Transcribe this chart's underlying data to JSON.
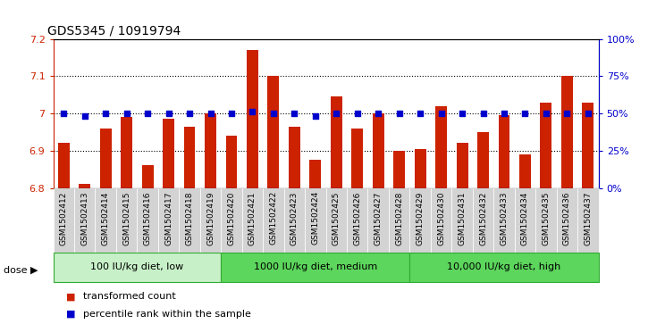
{
  "title": "GDS5345 / 10919794",
  "categories": [
    "GSM1502412",
    "GSM1502413",
    "GSM1502414",
    "GSM1502415",
    "GSM1502416",
    "GSM1502417",
    "GSM1502418",
    "GSM1502419",
    "GSM1502420",
    "GSM1502421",
    "GSM1502422",
    "GSM1502423",
    "GSM1502424",
    "GSM1502425",
    "GSM1502426",
    "GSM1502427",
    "GSM1502428",
    "GSM1502429",
    "GSM1502430",
    "GSM1502431",
    "GSM1502432",
    "GSM1502433",
    "GSM1502434",
    "GSM1502435",
    "GSM1502436",
    "GSM1502437"
  ],
  "bar_values": [
    6.92,
    6.81,
    6.96,
    6.99,
    6.86,
    6.985,
    6.965,
    7.0,
    6.94,
    7.17,
    7.1,
    6.965,
    6.875,
    7.045,
    6.96,
    7.0,
    6.9,
    6.905,
    7.02,
    6.92,
    6.95,
    6.995,
    6.89,
    7.03,
    7.1,
    7.03
  ],
  "percentile_values": [
    50,
    48,
    50,
    50,
    50,
    50,
    50,
    50,
    50,
    51,
    50,
    50,
    48,
    50,
    50,
    50,
    50,
    50,
    50,
    50,
    50,
    50,
    50,
    50,
    50,
    50
  ],
  "bar_color": "#cc2200",
  "dot_color": "#0000cc",
  "ylim_left": [
    6.8,
    7.2
  ],
  "ylim_right": [
    0,
    100
  ],
  "yticks_left": [
    6.8,
    6.9,
    7.0,
    7.1,
    7.2
  ],
  "ytick_labels_left": [
    "6.8",
    "6.9",
    "7",
    "7.1",
    "7.2"
  ],
  "yticks_right": [
    0,
    25,
    50,
    75,
    100
  ],
  "ytick_labels_right": [
    "0%",
    "25%",
    "50%",
    "75%",
    "100%"
  ],
  "grid_values": [
    6.9,
    7.0,
    7.1
  ],
  "dose_groups": [
    {
      "label": "100 IU/kg diet, low",
      "start": 0,
      "end": 8
    },
    {
      "label": "1000 IU/kg diet, medium",
      "start": 8,
      "end": 17
    },
    {
      "label": "10,000 IU/kg diet, high",
      "start": 17,
      "end": 26
    }
  ],
  "dose_colors": [
    "#c8f0c8",
    "#5cd65c",
    "#5cd65c"
  ],
  "dose_label": "dose",
  "legend_items": [
    {
      "label": "transformed count",
      "color": "#cc2200"
    },
    {
      "label": "percentile rank within the sample",
      "color": "#0000cc"
    }
  ],
  "plot_bg_color": "#ffffff",
  "tick_bg_color": "#d3d3d3",
  "fig_bg_color": "#ffffff"
}
